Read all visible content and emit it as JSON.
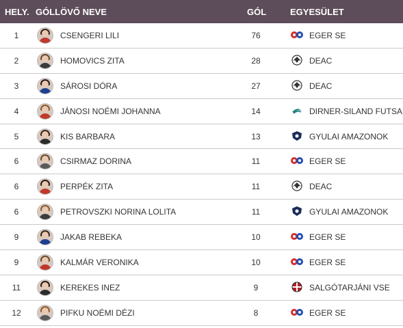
{
  "header": {
    "rank": "HELY.",
    "name": "GÓLLÖVŐ NEVE",
    "goals": "GÓL",
    "club": "EGYESÜLET"
  },
  "colors": {
    "header_bg": "#5d4c59",
    "row_divider": "#c9c9c9",
    "text": "#333333"
  },
  "rows": [
    {
      "rank": "1",
      "name": "CSENGERI LILI",
      "goals": "76",
      "club": "EGER SE",
      "logo": "eger-se-logo"
    },
    {
      "rank": "2",
      "name": "HOMOVICS ZITA",
      "goals": "28",
      "club": "DEAC",
      "logo": "deac-logo"
    },
    {
      "rank": "3",
      "name": "SÁROSI DÓRA",
      "goals": "27",
      "club": "DEAC",
      "logo": "deac-logo"
    },
    {
      "rank": "4",
      "name": "JÁNOSI NOÉMI JOHANNA",
      "goals": "14",
      "club": "DIRNER-SILAND FUTSAL",
      "logo": "dirner-siland-logo"
    },
    {
      "rank": "5",
      "name": "KIS BARBARA",
      "goals": "13",
      "club": "GYULAI AMAZONOK",
      "logo": "gyulai-amazonok-logo"
    },
    {
      "rank": "6",
      "name": "CSIRMAZ DORINA",
      "goals": "11",
      "club": "EGER SE",
      "logo": "eger-se-logo"
    },
    {
      "rank": "6",
      "name": "PERPÉK ZITA",
      "goals": "11",
      "club": "DEAC",
      "logo": "deac-logo"
    },
    {
      "rank": "6",
      "name": "PETROVSZKI NORINA LOLITA",
      "goals": "11",
      "club": "GYULAI AMAZONOK",
      "logo": "gyulai-amazonok-logo"
    },
    {
      "rank": "9",
      "name": "JAKAB REBEKA",
      "goals": "10",
      "club": "EGER SE",
      "logo": "eger-se-logo"
    },
    {
      "rank": "9",
      "name": "KALMÁR VERONIKA",
      "goals": "10",
      "club": "EGER SE",
      "logo": "eger-se-logo"
    },
    {
      "rank": "11",
      "name": "KEREKES INEZ",
      "goals": "9",
      "club": "SALGÓTARJÁNI VSE",
      "logo": "salgotarjani-vse-logo"
    },
    {
      "rank": "12",
      "name": "PIFKU NOÉMI DÉZI",
      "goals": "8",
      "club": "EGER SE",
      "logo": "eger-se-logo"
    }
  ]
}
